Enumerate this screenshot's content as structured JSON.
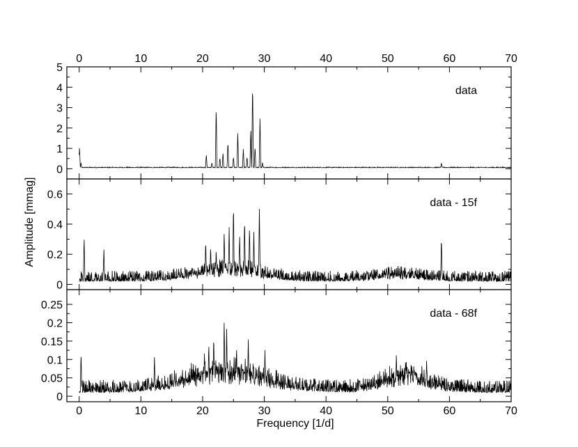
{
  "chart_data": {
    "type": "line",
    "xlabel": "Frequency [1/d]",
    "ylabel": "Amplitude [mmag]",
    "xlim": [
      -2,
      70
    ],
    "x_ticks": [
      "0",
      "10",
      "20",
      "30",
      "40",
      "50",
      "60",
      "70"
    ],
    "colors": {
      "line": "#000000",
      "axes": "#000000"
    },
    "grid": false,
    "panels": [
      {
        "label": "data",
        "ylim": [
          -0.5,
          5
        ],
        "y_ticks": [
          "0",
          "1",
          "2",
          "3",
          "4",
          "5"
        ],
        "series": [
          {
            "baseline": 0.05,
            "noise": 0.04,
            "humps": [],
            "peaks": [
              [
                0.05,
                1.05
              ],
              [
                0.3,
                0.3
              ],
              [
                20.6,
                0.7
              ],
              [
                21.5,
                0.3
              ],
              [
                22.2,
                3.1
              ],
              [
                22.8,
                0.55
              ],
              [
                23.3,
                0.8
              ],
              [
                24.1,
                1.35
              ],
              [
                25.0,
                0.6
              ],
              [
                25.7,
                1.8
              ],
              [
                26.6,
                1.0
              ],
              [
                27.2,
                0.6
              ],
              [
                27.8,
                2.0
              ],
              [
                28.1,
                4.3
              ],
              [
                28.5,
                1.1
              ],
              [
                29.3,
                2.55
              ],
              [
                29.7,
                0.3
              ],
              [
                58.7,
                0.3
              ]
            ]
          }
        ]
      },
      {
        "label": "data - 15f",
        "ylim": [
          -0.035,
          0.7
        ],
        "y_ticks": [
          "0",
          "0.2",
          "0.4",
          "0.6"
        ],
        "series": [
          {
            "baseline": 0.02,
            "noise": 0.07,
            "humps": [
              [
                24,
                7,
                0.07
              ],
              [
                52,
                5,
                0.03
              ]
            ],
            "peaks": [
              [
                0.8,
                0.32
              ],
              [
                4.0,
                0.24
              ],
              [
                20.5,
                0.3
              ],
              [
                21.3,
                0.26
              ],
              [
                22.2,
                0.24
              ],
              [
                23.5,
                0.36
              ],
              [
                24.3,
                0.38
              ],
              [
                25.0,
                0.55
              ],
              [
                26.0,
                0.34
              ],
              [
                26.8,
                0.45
              ],
              [
                27.6,
                0.4
              ],
              [
                28.3,
                0.36
              ],
              [
                29.2,
                0.52
              ],
              [
                58.7,
                0.32
              ]
            ]
          }
        ]
      },
      {
        "label": "data - 68f",
        "ylim": [
          -0.015,
          0.29
        ],
        "y_ticks": [
          "0",
          "0.05",
          "0.1",
          "0.15",
          "0.2",
          "0.25"
        ],
        "series": [
          {
            "baseline": 0.01,
            "noise": 0.035,
            "humps": [
              [
                24,
                9,
                0.05
              ],
              [
                53,
                5,
                0.04
              ]
            ],
            "peaks": [
              [
                0.3,
                0.12
              ],
              [
                12.2,
                0.11
              ],
              [
                20.3,
                0.12
              ],
              [
                21.0,
                0.15
              ],
              [
                21.8,
                0.17
              ],
              [
                23.5,
                0.215
              ],
              [
                23.9,
                0.19
              ],
              [
                25.5,
                0.14
              ],
              [
                27.4,
                0.16
              ],
              [
                30.1,
                0.13
              ],
              [
                51.4,
                0.12
              ],
              [
                53.0,
                0.1
              ],
              [
                56.3,
                0.1
              ]
            ]
          }
        ]
      }
    ]
  }
}
